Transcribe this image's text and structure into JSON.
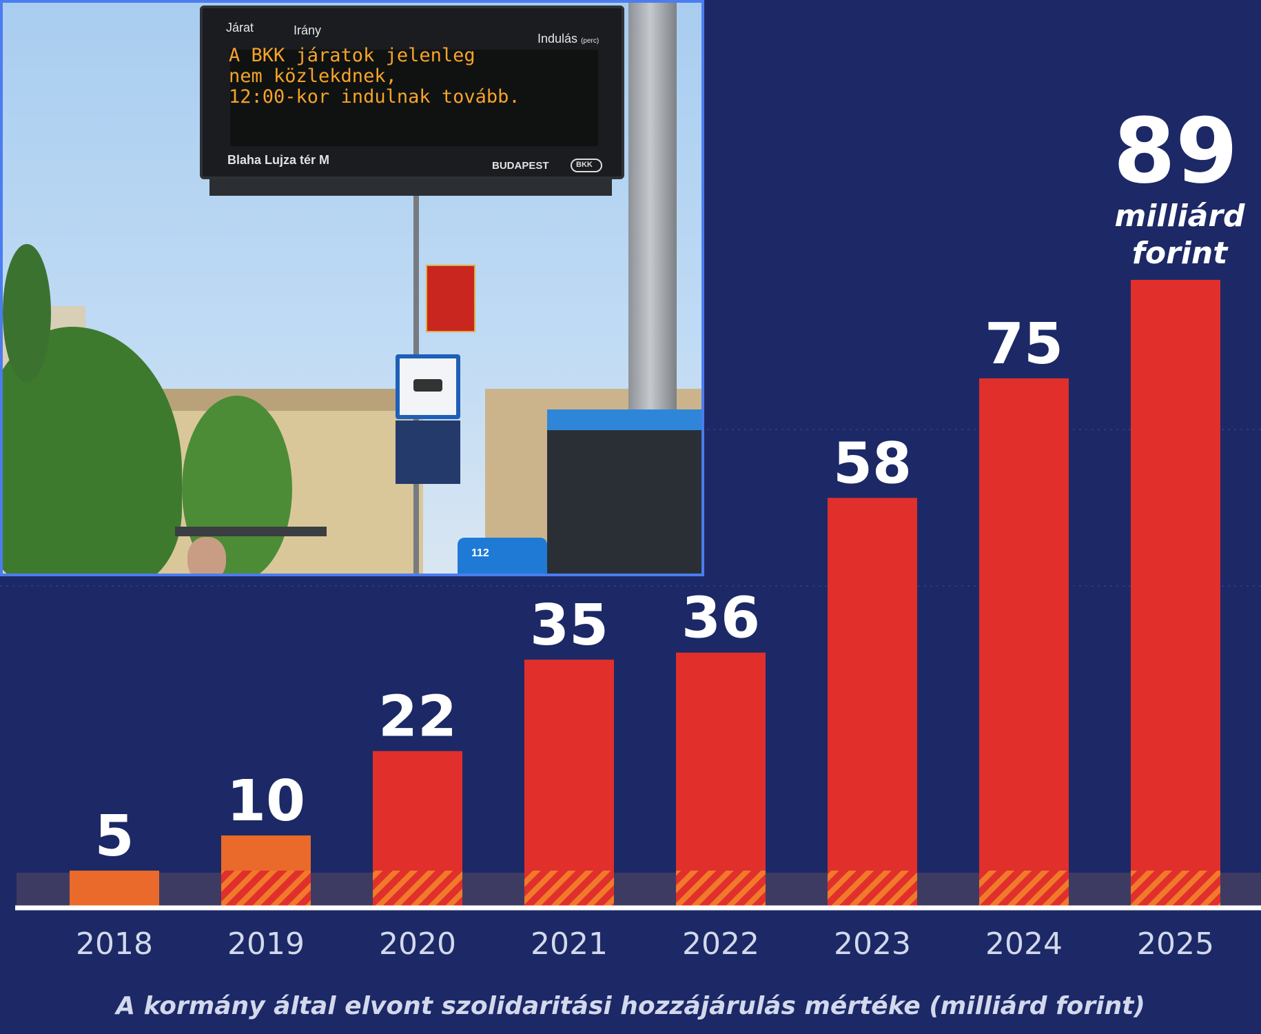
{
  "chart_data": {
    "type": "bar",
    "categories": [
      "2018",
      "2019",
      "2020",
      "2021",
      "2022",
      "2023",
      "2024",
      "2025"
    ],
    "values": [
      5,
      10,
      22,
      35,
      36,
      58,
      75,
      89
    ],
    "value_labels": [
      "5",
      "10",
      "22",
      "35",
      "36",
      "58",
      "75",
      "89"
    ],
    "bar_colors": [
      "#e96a2a",
      "#e96a2a",
      "#e12f2c",
      "#e12f2c",
      "#e12f2c",
      "#e12f2c",
      "#e12f2c",
      "#e12f2c"
    ],
    "base_band": {
      "value": 5,
      "color": "#e96a2a",
      "pattern": "diagonal-stripes"
    },
    "unit_label_line1": "milliárd",
    "unit_label_line2": "forint",
    "caption": "A kormány által elvont szolidaritási hozzájárulás mértéke (milliárd forint)",
    "ylim": [
      0,
      89
    ],
    "grid": true,
    "background_color": "#1c2966"
  },
  "photo": {
    "sign_col_route": "Járat",
    "sign_col_direction": "Irány",
    "sign_col_departure": "Indulás",
    "sign_col_departure_unit": "(perc)",
    "sign_message": "A BKK járatok jelenleg\nnem közlekdnek,\n12:00-kor indulnak tovább.",
    "sign_stop": "Blaha Lujza tér M",
    "sign_brand": "BUDAPEST",
    "sign_badge": "BKK",
    "bus_route": "112"
  }
}
